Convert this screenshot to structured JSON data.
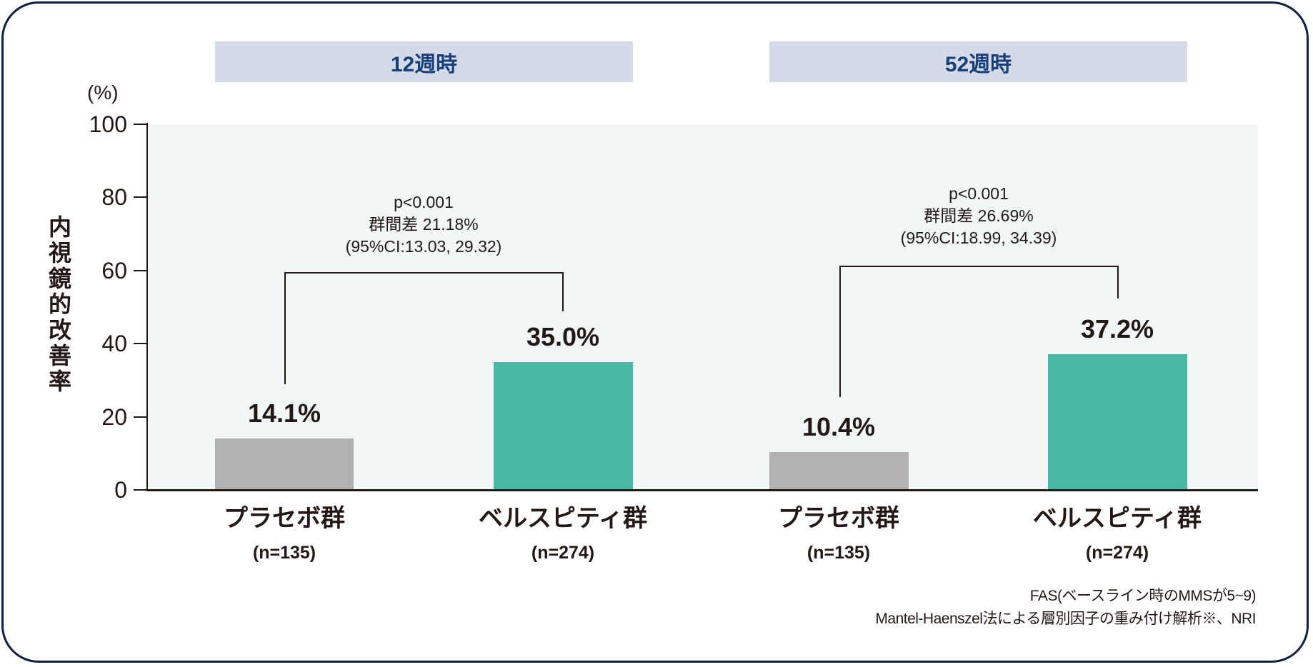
{
  "chart_data": {
    "type": "bar",
    "title": "",
    "ylabel": "内視鏡的改善率",
    "yunit": "(%)",
    "ylim": [
      0,
      100
    ],
    "yticks": [
      0,
      20,
      40,
      60,
      80,
      100
    ],
    "colors": {
      "placebo": "#b2b2b2",
      "treatment": "#4bb8a5",
      "band": "#d4dae8",
      "band_text": "#17407a",
      "plot_bg": "#f1f7f7"
    },
    "panels": [
      {
        "header": "12週時",
        "categories": [
          "プラセボ群",
          "ベルスピティ群"
        ],
        "n_labels": [
          "(n=135)",
          "(n=274)"
        ],
        "values": [
          14.1,
          35.0
        ],
        "value_labels": [
          "14.1%",
          "35.0%"
        ],
        "annotation": [
          "p<0.001",
          "群間差 21.18%",
          "(95%CI:13.03, 29.32)"
        ]
      },
      {
        "header": "52週時",
        "categories": [
          "プラセボ群",
          "ベルスピティ群"
        ],
        "n_labels": [
          "(n=135)",
          "(n=274)"
        ],
        "values": [
          10.4,
          37.2
        ],
        "value_labels": [
          "10.4%",
          "37.2%"
        ],
        "annotation": [
          "p<0.001",
          "群間差 26.69%",
          "(95%CI:18.99, 34.39)"
        ]
      }
    ],
    "footnotes": [
      "FAS(ベースライン時のMMSが5~9)",
      "Mantel-Haenszel法による層別因子の重み付け解析※、NRI"
    ]
  }
}
